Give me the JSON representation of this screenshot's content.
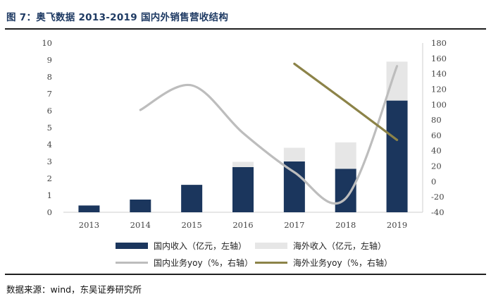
{
  "page": {
    "title": "图 7：奥飞数据 2013-2019 国内外销售营收结构",
    "source": "数据来源：wind，东吴证券研究所"
  },
  "colors": {
    "domestic_bar": "#1b365d",
    "overseas_bar": "#e6e6e6",
    "domestic_line": "#bdbdbd",
    "overseas_line": "#8c8348",
    "title": "#1e3a63",
    "axis": "#cfcfcf"
  },
  "chart_data": {
    "type": "bar",
    "categories": [
      "2013",
      "2014",
      "2015",
      "2016",
      "2017",
      "2018",
      "2019"
    ],
    "left_axis": {
      "ylim": [
        0,
        10
      ],
      "ticks": [
        0,
        1,
        2,
        3,
        4,
        5,
        6,
        7,
        8,
        9,
        10
      ]
    },
    "right_axis": {
      "ylim": [
        -40,
        180
      ],
      "ticks": [
        -40,
        -20,
        0,
        20,
        40,
        60,
        80,
        100,
        120,
        140,
        160,
        180
      ]
    },
    "series": [
      {
        "name": "国内收入（亿元，左轴）",
        "kind": "bar",
        "axis": "left",
        "values": [
          0.4,
          0.75,
          1.62,
          2.67,
          3.0,
          2.57,
          6.6
        ]
      },
      {
        "name": "海外收入（亿元，左轴）",
        "kind": "bar",
        "axis": "left",
        "stacked": true,
        "values": [
          0,
          0,
          0,
          0.31,
          0.81,
          1.56,
          2.3
        ]
      },
      {
        "name": "国内业务yoy（%，右轴）",
        "kind": "line",
        "axis": "right",
        "smooth": true,
        "values": [
          null,
          93,
          125,
          63,
          12,
          -22,
          150
        ]
      },
      {
        "name": "海外业务yoy（%，右轴）",
        "kind": "line",
        "axis": "right",
        "values": [
          null,
          null,
          null,
          null,
          153,
          104,
          54
        ]
      }
    ],
    "legend_position": "bottom",
    "grid": false
  }
}
